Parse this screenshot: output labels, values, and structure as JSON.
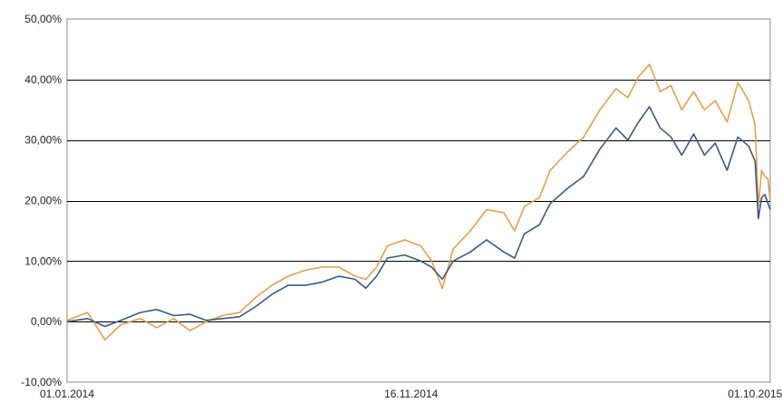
{
  "chart_data": {
    "type": "line",
    "title": "",
    "xlabel": "",
    "ylabel": "",
    "ylim": [
      -10,
      50
    ],
    "y_ticks": [
      -10,
      0,
      10,
      20,
      30,
      40,
      50
    ],
    "y_tick_labels": [
      "-10,00%",
      "0,00%",
      "10,00%",
      "20,00%",
      "30,00%",
      "40,00%",
      "50,00%"
    ],
    "x_range": [
      "2014-01-01",
      "2015-10-15"
    ],
    "x_ticks": [
      "2014-01-01",
      "2014-11-16",
      "2015-10-01"
    ],
    "x_tick_labels": [
      "01.01.2014",
      "16.11.2014",
      "01.10.2015"
    ],
    "grid": "horizontal",
    "legend": "none",
    "series": [
      {
        "color": "#3a5a80",
        "points": [
          [
            "2014-01-01",
            0.0
          ],
          [
            "2014-01-20",
            0.5
          ],
          [
            "2014-02-05",
            -0.8
          ],
          [
            "2014-02-20",
            0.2
          ],
          [
            "2014-03-10",
            1.5
          ],
          [
            "2014-03-25",
            2.0
          ],
          [
            "2014-04-10",
            1.0
          ],
          [
            "2014-04-25",
            1.2
          ],
          [
            "2014-05-10",
            0.2
          ],
          [
            "2014-05-25",
            0.5
          ],
          [
            "2014-06-10",
            0.8
          ],
          [
            "2014-06-25",
            2.5
          ],
          [
            "2014-07-10",
            4.5
          ],
          [
            "2014-07-25",
            6.0
          ],
          [
            "2014-08-10",
            6.0
          ],
          [
            "2014-08-25",
            6.5
          ],
          [
            "2014-09-10",
            7.5
          ],
          [
            "2014-09-25",
            7.0
          ],
          [
            "2014-10-05",
            5.5
          ],
          [
            "2014-10-15",
            7.5
          ],
          [
            "2014-10-25",
            10.5
          ],
          [
            "2014-11-10",
            11.0
          ],
          [
            "2014-11-25",
            10.0
          ],
          [
            "2014-12-05",
            9.0
          ],
          [
            "2014-12-15",
            7.0
          ],
          [
            "2014-12-25",
            10.0
          ],
          [
            "2015-01-10",
            11.5
          ],
          [
            "2015-01-25",
            13.5
          ],
          [
            "2015-02-10",
            11.5
          ],
          [
            "2015-02-20",
            10.5
          ],
          [
            "2015-03-01",
            14.5
          ],
          [
            "2015-03-15",
            16.0
          ],
          [
            "2015-03-25",
            19.5
          ],
          [
            "2015-04-10",
            22.0
          ],
          [
            "2015-04-25",
            24.0
          ],
          [
            "2015-05-10",
            28.5
          ],
          [
            "2015-05-25",
            32.0
          ],
          [
            "2015-06-05",
            30.0
          ],
          [
            "2015-06-15",
            33.0
          ],
          [
            "2015-06-25",
            35.5
          ],
          [
            "2015-07-05",
            32.0
          ],
          [
            "2015-07-15",
            30.5
          ],
          [
            "2015-07-25",
            27.5
          ],
          [
            "2015-08-05",
            31.0
          ],
          [
            "2015-08-15",
            27.5
          ],
          [
            "2015-08-25",
            29.5
          ],
          [
            "2015-09-05",
            25.0
          ],
          [
            "2015-09-15",
            30.5
          ],
          [
            "2015-09-25",
            29.0
          ],
          [
            "2015-10-01",
            26.5
          ],
          [
            "2015-10-04",
            17.0
          ],
          [
            "2015-10-07",
            20.5
          ],
          [
            "2015-10-10",
            21.0
          ],
          [
            "2015-10-13",
            19.5
          ],
          [
            "2015-10-15",
            18.5
          ]
        ]
      },
      {
        "color": "#e0a050",
        "points": [
          [
            "2014-01-01",
            0.2
          ],
          [
            "2014-01-20",
            1.5
          ],
          [
            "2014-02-05",
            -3.0
          ],
          [
            "2014-02-20",
            -0.5
          ],
          [
            "2014-03-10",
            0.5
          ],
          [
            "2014-03-25",
            -1.0
          ],
          [
            "2014-04-10",
            0.5
          ],
          [
            "2014-04-25",
            -1.5
          ],
          [
            "2014-05-10",
            0.0
          ],
          [
            "2014-05-25",
            1.0
          ],
          [
            "2014-06-10",
            1.5
          ],
          [
            "2014-06-25",
            4.0
          ],
          [
            "2014-07-10",
            6.0
          ],
          [
            "2014-07-25",
            7.5
          ],
          [
            "2014-08-10",
            8.5
          ],
          [
            "2014-08-25",
            9.0
          ],
          [
            "2014-09-10",
            9.0
          ],
          [
            "2014-09-25",
            7.5
          ],
          [
            "2014-10-05",
            7.0
          ],
          [
            "2014-10-15",
            9.0
          ],
          [
            "2014-10-25",
            12.5
          ],
          [
            "2014-11-10",
            13.5
          ],
          [
            "2014-11-25",
            12.5
          ],
          [
            "2014-12-05",
            10.0
          ],
          [
            "2014-12-15",
            5.5
          ],
          [
            "2014-12-25",
            12.0
          ],
          [
            "2015-01-10",
            15.0
          ],
          [
            "2015-01-25",
            18.5
          ],
          [
            "2015-02-10",
            18.0
          ],
          [
            "2015-02-20",
            15.0
          ],
          [
            "2015-03-01",
            19.0
          ],
          [
            "2015-03-15",
            20.5
          ],
          [
            "2015-03-25",
            25.0
          ],
          [
            "2015-04-10",
            28.0
          ],
          [
            "2015-04-25",
            30.5
          ],
          [
            "2015-05-10",
            35.0
          ],
          [
            "2015-05-25",
            38.5
          ],
          [
            "2015-06-05",
            37.0
          ],
          [
            "2015-06-15",
            40.5
          ],
          [
            "2015-06-25",
            42.5
          ],
          [
            "2015-07-05",
            38.0
          ],
          [
            "2015-07-15",
            39.0
          ],
          [
            "2015-07-25",
            35.0
          ],
          [
            "2015-08-05",
            38.0
          ],
          [
            "2015-08-15",
            35.0
          ],
          [
            "2015-08-25",
            36.5
          ],
          [
            "2015-09-05",
            33.0
          ],
          [
            "2015-09-15",
            39.5
          ],
          [
            "2015-09-25",
            36.5
          ],
          [
            "2015-10-01",
            32.5
          ],
          [
            "2015-10-04",
            19.0
          ],
          [
            "2015-10-07",
            25.0
          ],
          [
            "2015-10-10",
            24.0
          ],
          [
            "2015-10-13",
            23.5
          ],
          [
            "2015-10-15",
            20.0
          ]
        ]
      }
    ]
  }
}
